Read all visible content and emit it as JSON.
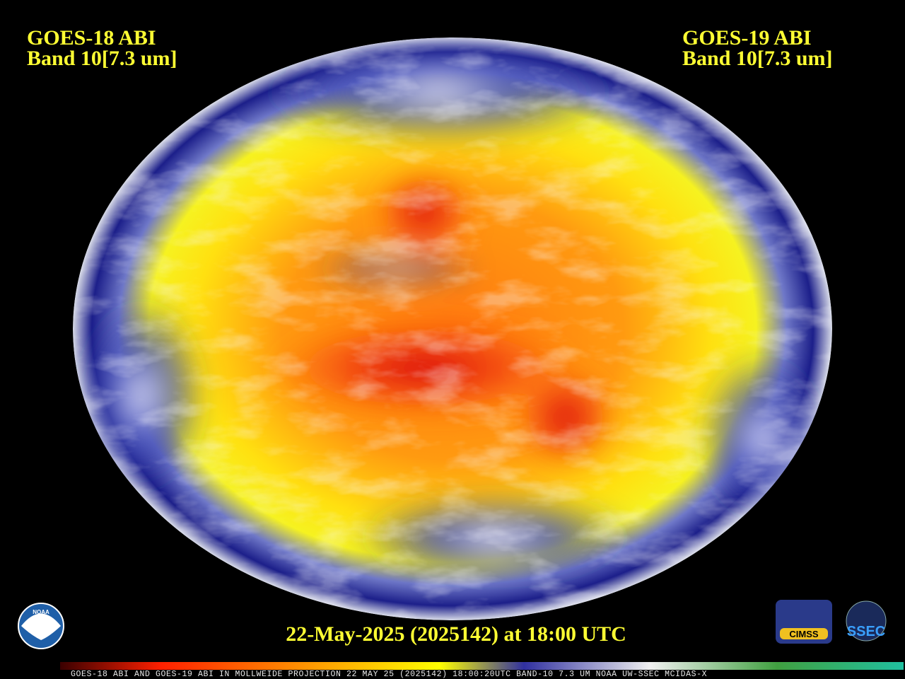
{
  "left_label": {
    "satellite": "GOES-18 ABI",
    "band": "Band 10[7.3 um]"
  },
  "right_label": {
    "satellite": "GOES-19 ABI",
    "band": "Band 10[7.3 um]"
  },
  "timestamp": "22-May-2025 (2025142) at 18:00 UTC",
  "footer": "GOES-18 ABI AND GOES-19 ABI IN MOLLWEIDE PROJECTION 22 MAY 25 (2025142) 18:00:20UTC BAND-10 7.3 UM NOAA UW-SSEC MCIDAS-X",
  "logos": {
    "noaa": "NOAA",
    "cimss": "CIMSS",
    "ssec": "SSEC"
  }
}
